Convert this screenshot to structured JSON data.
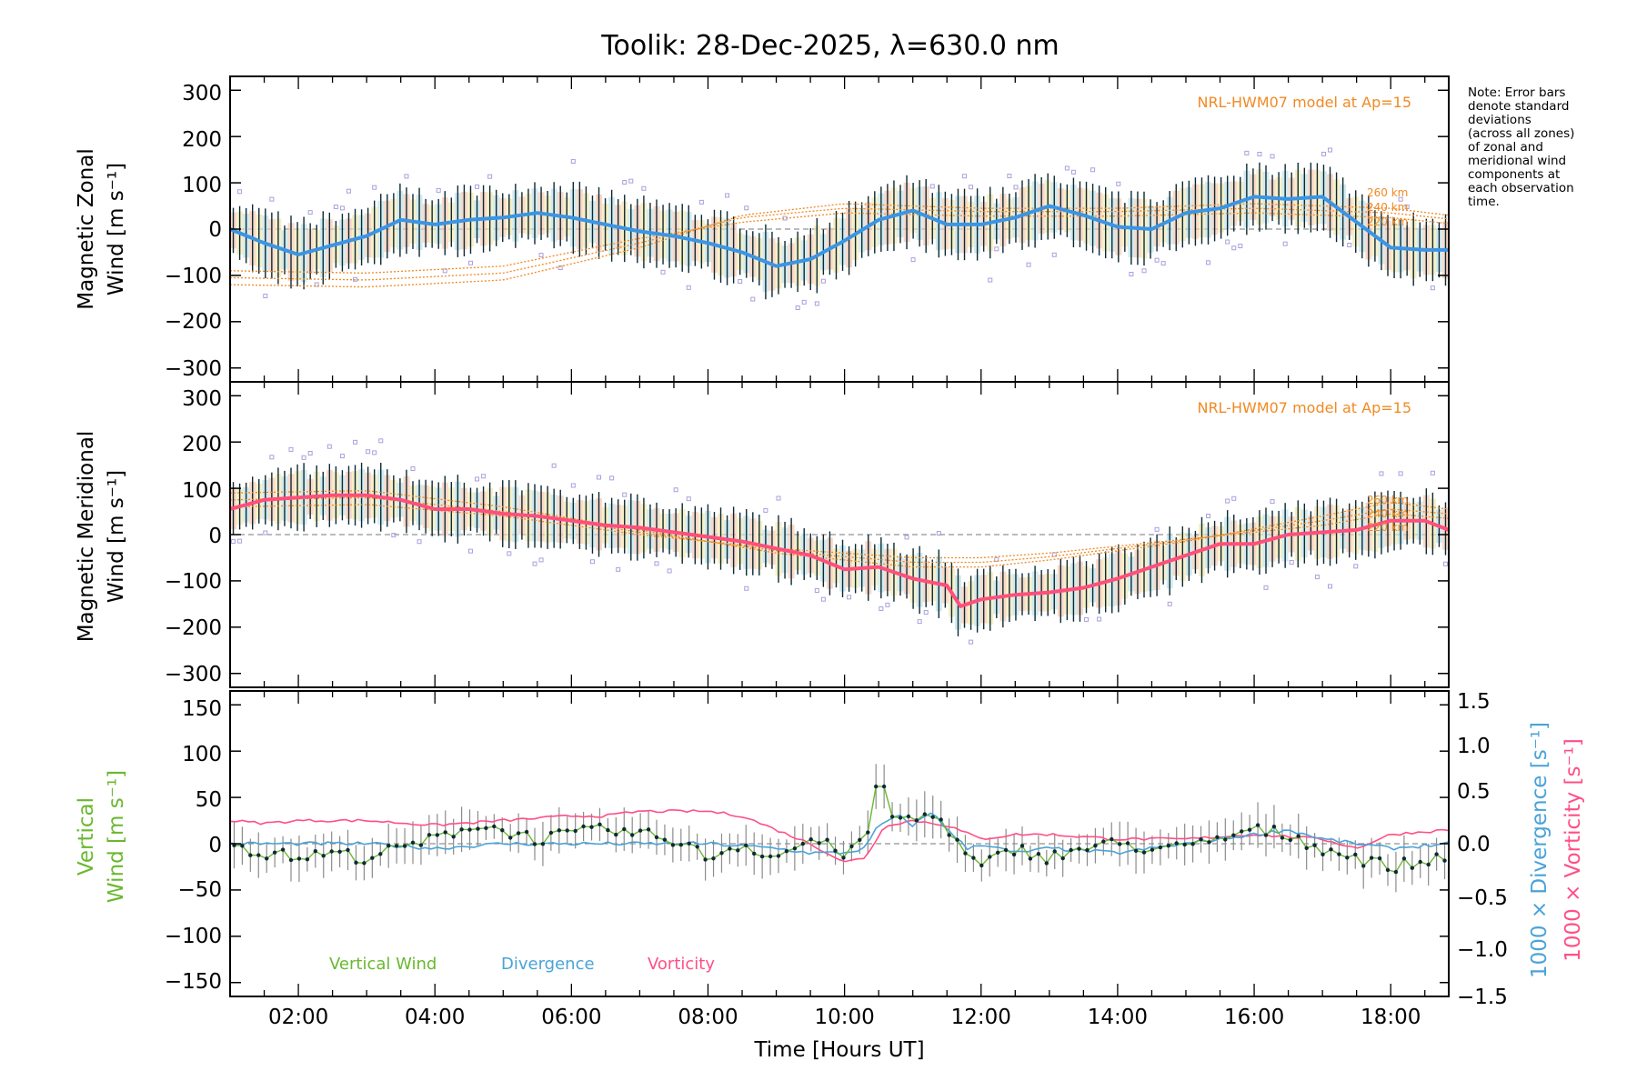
{
  "title": "Toolik: 28-Dec-2025, λ=630.0 nm",
  "note_lines": [
    "Note: Error bars",
    "denote standard",
    "deviations",
    "(across all zones)",
    "of zonal and",
    "meridional wind",
    "components at",
    "each observation",
    "time."
  ],
  "colors": {
    "zonal_main": "#3b95e4",
    "meridional_main": "#ff4f7b",
    "model": "#f08a24",
    "error_bar": "#0d2a33",
    "outlier": "#a9a0dc",
    "vertical": "#6ab82e",
    "divergence": "#4aa3d8",
    "vorticity": "#ff4f86",
    "zero_line": "#777777"
  },
  "chart_data": [
    {
      "type": "line",
      "panel": "zonal",
      "ylabel_line1": "Magnetic Zonal",
      "ylabel_line2": "Wind",
      "ylabel_unit": "[m s⁻¹]",
      "xlim": [
        1.0,
        18.85
      ],
      "ylim": [
        -330,
        330
      ],
      "yticks": [
        "300",
        "200",
        "100",
        "0",
        "−100",
        "−200",
        "−300"
      ],
      "model_label": "NRL-HWM07 model at Ap=15",
      "model_alt_labels": [
        "260 km",
        "240 km",
        "220 km"
      ],
      "series": [
        {
          "name": "Magnetic Zonal Wind",
          "x": [
            1.0,
            1.5,
            2.0,
            2.5,
            3.0,
            3.5,
            4.0,
            4.5,
            5.0,
            5.5,
            6.0,
            6.5,
            7.0,
            7.5,
            8.0,
            8.5,
            9.0,
            9.5,
            10.0,
            10.5,
            11.0,
            11.5,
            12.0,
            12.5,
            13.0,
            13.5,
            14.0,
            14.5,
            15.0,
            15.5,
            16.0,
            16.5,
            17.0,
            17.5,
            18.0,
            18.5,
            18.85
          ],
          "values": [
            0,
            -30,
            -55,
            -35,
            -15,
            20,
            10,
            20,
            25,
            35,
            25,
            10,
            -5,
            -15,
            -30,
            -50,
            -80,
            -65,
            -25,
            20,
            40,
            10,
            10,
            25,
            50,
            30,
            5,
            0,
            35,
            45,
            70,
            65,
            70,
            15,
            -40,
            -45,
            -45
          ],
          "spread": 65
        },
        {
          "name": "NRL-HWM07 260 km",
          "x": [
            1.0,
            3.0,
            5.0,
            7.0,
            8.5,
            10.0,
            12.0,
            14.0,
            16.0,
            18.0,
            18.85
          ],
          "values": [
            -120,
            -125,
            -110,
            -40,
            30,
            55,
            45,
            45,
            55,
            45,
            30
          ]
        },
        {
          "name": "NRL-HWM07 240 km",
          "x": [
            1.0,
            3.0,
            5.0,
            7.0,
            8.5,
            10.0,
            12.0,
            14.0,
            16.0,
            18.0,
            18.85
          ],
          "values": [
            -105,
            -110,
            -95,
            -30,
            25,
            45,
            38,
            38,
            45,
            35,
            22
          ]
        },
        {
          "name": "NRL-HWM07 220 km",
          "x": [
            1.0,
            3.0,
            5.0,
            7.0,
            8.5,
            10.0,
            12.0,
            14.0,
            16.0,
            18.0,
            18.85
          ],
          "values": [
            -90,
            -95,
            -80,
            -20,
            15,
            35,
            28,
            28,
            35,
            25,
            12
          ]
        }
      ]
    },
    {
      "type": "line",
      "panel": "meridional",
      "ylabel_line1": "Magnetic Meridional",
      "ylabel_line2": "Wind",
      "ylabel_unit": "[m s⁻¹]",
      "xlim": [
        1.0,
        18.85
      ],
      "ylim": [
        -330,
        330
      ],
      "yticks": [
        "300",
        "200",
        "100",
        "0",
        "−100",
        "−200",
        "−300"
      ],
      "model_label": "NRL-HWM07 model at Ap=15",
      "model_alt_labels": [
        "260 km",
        "240 km",
        "220 km"
      ],
      "series": [
        {
          "name": "Magnetic Meridional Wind",
          "x": [
            1.0,
            1.5,
            2.0,
            2.5,
            3.0,
            3.5,
            4.0,
            4.5,
            5.0,
            5.5,
            6.0,
            6.5,
            7.0,
            7.5,
            8.0,
            8.5,
            9.0,
            9.5,
            10.0,
            10.5,
            11.0,
            11.5,
            11.7,
            12.0,
            12.5,
            13.0,
            13.5,
            14.0,
            14.5,
            15.0,
            15.5,
            16.0,
            16.5,
            17.0,
            17.5,
            18.0,
            18.5,
            18.85
          ],
          "values": [
            55,
            75,
            80,
            85,
            85,
            75,
            55,
            55,
            45,
            40,
            30,
            20,
            15,
            5,
            -5,
            -15,
            -30,
            -45,
            -75,
            -70,
            -95,
            -110,
            -155,
            -140,
            -130,
            -125,
            -115,
            -95,
            -70,
            -45,
            -20,
            -20,
            0,
            5,
            10,
            30,
            30,
            10
          ],
          "spread": 60
        },
        {
          "name": "NRL-HWM07 260 km",
          "x": [
            1.0,
            3.0,
            5.0,
            7.0,
            9.0,
            11.0,
            12.0,
            13.0,
            15.0,
            17.0,
            18.0,
            18.85
          ],
          "values": [
            90,
            95,
            60,
            10,
            -40,
            -70,
            -70,
            -55,
            -15,
            40,
            70,
            55
          ]
        },
        {
          "name": "NRL-HWM07 240 km",
          "x": [
            1.0,
            3.0,
            5.0,
            7.0,
            9.0,
            11.0,
            12.0,
            13.0,
            15.0,
            17.0,
            18.0,
            18.85
          ],
          "values": [
            75,
            80,
            50,
            5,
            -35,
            -60,
            -60,
            -48,
            -12,
            30,
            55,
            45
          ]
        },
        {
          "name": "NRL-HWM07 220 km",
          "x": [
            1.0,
            3.0,
            5.0,
            7.0,
            9.0,
            11.0,
            12.0,
            13.0,
            15.0,
            17.0,
            18.0,
            18.85
          ],
          "values": [
            60,
            65,
            40,
            0,
            -30,
            -50,
            -50,
            -40,
            -10,
            20,
            45,
            35
          ]
        }
      ]
    },
    {
      "type": "line",
      "panel": "vertical",
      "ylabel_line1": "Vertical",
      "ylabel_line2": "Wind",
      "ylabel_unit": "[m s⁻¹]",
      "right_label_1": "1000 × Divergence [s⁻¹]",
      "right_label_2": "1000 × Vorticity [s⁻¹]",
      "xlim": [
        1.0,
        18.85
      ],
      "ylim": [
        -165,
        165
      ],
      "yticks": [
        "150",
        "100",
        "50",
        "0",
        "−50",
        "−100",
        "−150"
      ],
      "y2lim": [
        -1.65,
        1.65
      ],
      "y2ticks": [
        "1.5",
        "1.0",
        "0.5",
        "0.0",
        "−0.5",
        "−1.0",
        "−1.5"
      ],
      "legend": [
        "Vertical Wind",
        "Divergence",
        "Vorticity"
      ],
      "series": [
        {
          "name": "Vertical Wind",
          "x": [
            1.0,
            1.5,
            2.0,
            2.5,
            3.0,
            3.5,
            4.0,
            4.5,
            5.0,
            5.5,
            6.0,
            6.5,
            7.0,
            7.5,
            8.0,
            8.5,
            9.0,
            9.5,
            10.0,
            10.3,
            10.5,
            10.7,
            11.0,
            11.3,
            11.5,
            11.8,
            12.0,
            12.5,
            13.0,
            13.5,
            14.0,
            14.5,
            15.0,
            15.5,
            16.0,
            16.5,
            17.0,
            17.5,
            18.0,
            18.5,
            18.85
          ],
          "values": [
            0,
            -10,
            -15,
            -10,
            -15,
            -5,
            5,
            20,
            15,
            5,
            10,
            15,
            10,
            5,
            -15,
            0,
            -15,
            5,
            -10,
            0,
            75,
            30,
            25,
            35,
            15,
            -15,
            -25,
            -5,
            -15,
            -5,
            0,
            -5,
            -5,
            5,
            15,
            10,
            -5,
            -15,
            -25,
            -20,
            -10
          ],
          "error": 18
        },
        {
          "name": "Divergence",
          "x": [
            1.0,
            2.0,
            3.0,
            4.0,
            5.0,
            6.0,
            7.0,
            8.0,
            9.0,
            9.5,
            10.0,
            10.3,
            10.5,
            10.8,
            11.0,
            11.3,
            11.5,
            11.8,
            12.0,
            12.5,
            13.0,
            14.0,
            15.0,
            15.5,
            16.0,
            16.5,
            17.0,
            18.0,
            18.85
          ],
          "values": [
            0.0,
            0.0,
            0.0,
            -0.05,
            0.0,
            0.0,
            0.0,
            0.0,
            -0.05,
            -0.1,
            -0.1,
            -0.05,
            0.2,
            0.3,
            0.2,
            0.35,
            0.15,
            -0.05,
            0.0,
            -0.1,
            -0.05,
            -0.1,
            0.0,
            0.05,
            0.1,
            0.15,
            0.05,
            -0.05,
            0.0
          ]
        },
        {
          "name": "Vorticity",
          "x": [
            1.0,
            1.5,
            2.0,
            3.0,
            4.0,
            5.0,
            6.0,
            6.5,
            7.0,
            8.0,
            8.5,
            9.0,
            9.5,
            10.0,
            10.3,
            10.6,
            11.0,
            11.5,
            12.0,
            12.5,
            13.0,
            14.0,
            15.0,
            16.0,
            17.0,
            17.5,
            18.0,
            18.85
          ],
          "values": [
            0.25,
            0.22,
            0.25,
            0.25,
            0.2,
            0.25,
            0.3,
            0.3,
            0.35,
            0.35,
            0.3,
            0.15,
            0.0,
            -0.2,
            -0.15,
            0.2,
            0.25,
            0.2,
            0.05,
            0.1,
            0.1,
            0.05,
            0.05,
            0.1,
            0.05,
            -0.05,
            0.1,
            0.15
          ]
        }
      ]
    }
  ],
  "xaxis": {
    "label": "Time [Hours UT]",
    "tick_labels": [
      "02:00",
      "04:00",
      "06:00",
      "08:00",
      "10:00",
      "12:00",
      "14:00",
      "16:00",
      "18:00"
    ],
    "tick_values": [
      2,
      4,
      6,
      8,
      10,
      12,
      14,
      16,
      18
    ]
  }
}
